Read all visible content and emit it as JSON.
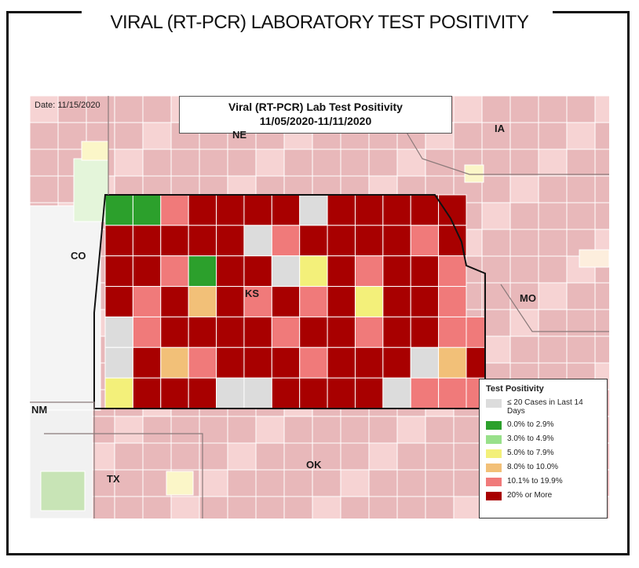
{
  "page_title": "VIRAL (RT-PCR) LABORATORY TEST POSITIVITY",
  "map": {
    "date_label": "Date: 11/15/2020",
    "title_line1": "Viral (RT-PCR) Lab Test Positivity",
    "title_line2": "11/05/2020-11/11/2020",
    "state_labels": {
      "ne": "NE",
      "ia": "IA",
      "co": "CO",
      "ks": "KS",
      "mo": "MO",
      "nm": "NM",
      "ok": "OK",
      "tx": "TX"
    }
  },
  "legend": {
    "title": "Test Positivity",
    "items": [
      {
        "label": "≤ 20 Cases in Last 14 Days",
        "color": "#dcdcdc"
      },
      {
        "label": "0.0% to 2.9%",
        "color": "#2ca02c"
      },
      {
        "label": "3.0% to 4.9%",
        "color": "#98e08a"
      },
      {
        "label": "5.0% to 7.9%",
        "color": "#f3f07a"
      },
      {
        "label": "8.0% to 10.0%",
        "color": "#f2c078"
      },
      {
        "label": "10.1% to 19.9%",
        "color": "#f07a7a"
      },
      {
        "label": "20% or More",
        "color": "#a80000"
      }
    ]
  },
  "colors": {
    "surrounding_counties": "#e8b8ba",
    "light_counties": "#f6d3d3",
    "county_border": "#ffffff",
    "state_border": "#111111"
  }
}
